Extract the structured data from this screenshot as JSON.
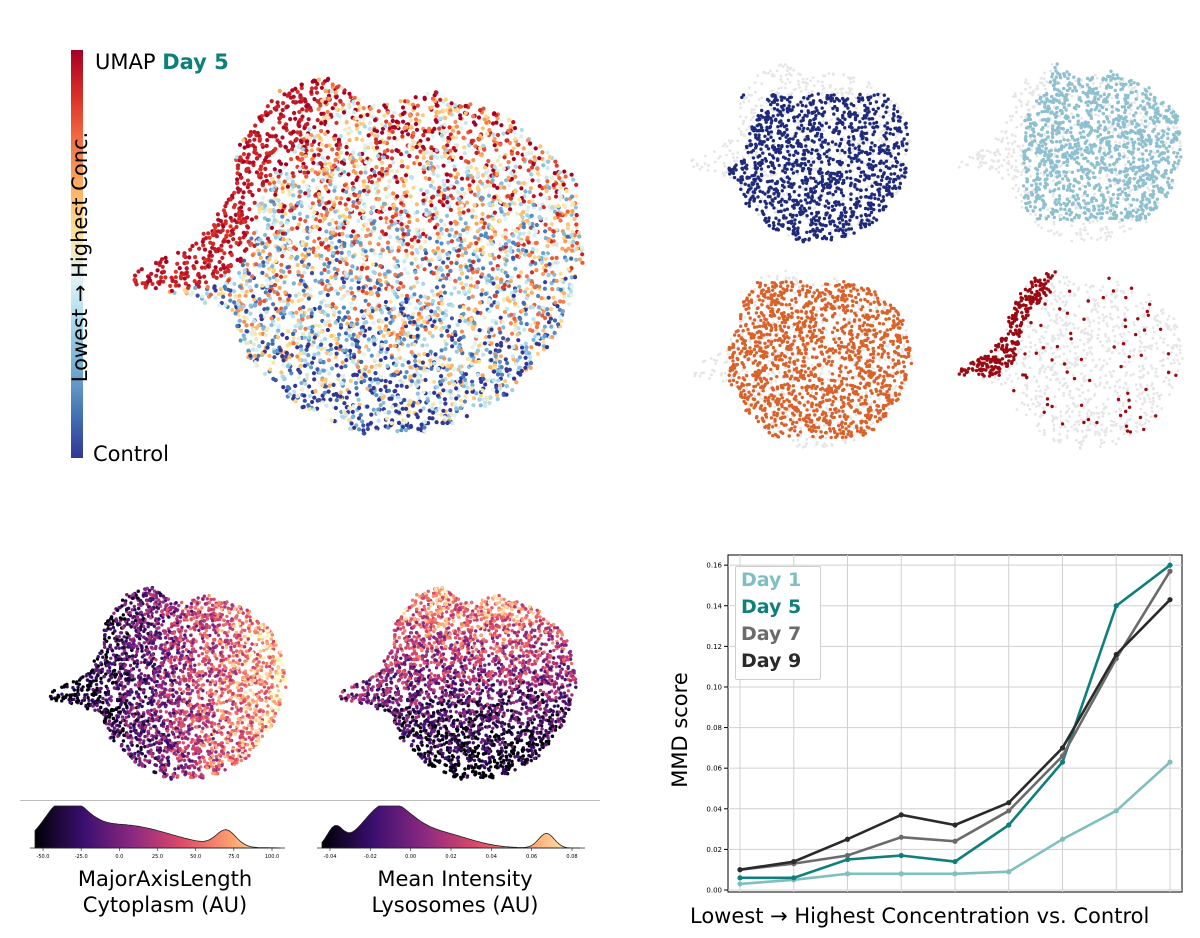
{
  "umap_panel": {
    "title_prefix": "UMAP",
    "title_day": "Day 5",
    "colorbar_low_label": "Control",
    "colorbar_axis_label": "Lowest → Highest Conc.",
    "colorbar_colors": [
      "#313695",
      "#4575b4",
      "#74add1",
      "#abd9e9",
      "#e0f3f8",
      "#fee090",
      "#fdae61",
      "#f46d43",
      "#d73027",
      "#a50026"
    ]
  },
  "concentration_panels": {
    "colors": [
      "#1f2a7a",
      "#8fc0cf",
      "#d9622b",
      "#9b0a12"
    ],
    "background_color": "#e6e6e6"
  },
  "feature_panels": {
    "panels": [
      {
        "caption_line1": "MajorAxisLength",
        "caption_line2": "Cytoplasm (AU)",
        "ticks": [
          "-50.0",
          "-25.0",
          "0.0",
          "25.0",
          "50.0",
          "75.0",
          "100.0"
        ]
      },
      {
        "caption_line1": "Mean Intensity",
        "caption_line2": "Lysosomes (AU)",
        "ticks": [
          "-0.04",
          "-0.02",
          "0.00",
          "0.02",
          "0.04",
          "0.06",
          "0.08"
        ]
      }
    ],
    "colormap": [
      "#000004",
      "#3b0f70",
      "#8c2981",
      "#de4968",
      "#fe9f6d",
      "#fcfdbf"
    ]
  },
  "chart_data": {
    "type": "line",
    "xlabel": "Lowest → Highest Concentration vs. Control",
    "ylabel": "MMD score",
    "x": [
      1,
      2,
      3,
      4,
      5,
      6,
      7,
      8,
      9
    ],
    "ylim": [
      0.0,
      0.165
    ],
    "yticks": [
      "0.00",
      "0.02",
      "0.04",
      "0.06",
      "0.08",
      "0.10",
      "0.12",
      "0.14",
      "0.16"
    ],
    "grid": true,
    "legend_position": "top-left",
    "series": [
      {
        "name": "Day 1",
        "color": "#7fbfbf",
        "values": [
          0.003,
          0.005,
          0.008,
          0.008,
          0.008,
          0.009,
          0.025,
          0.039,
          0.063
        ]
      },
      {
        "name": "Day 5",
        "color": "#0f7f7c",
        "values": [
          0.006,
          0.006,
          0.015,
          0.017,
          0.014,
          0.032,
          0.063,
          0.14,
          0.16
        ]
      },
      {
        "name": "Day 7",
        "color": "#6b6b6b",
        "values": [
          0.01,
          0.013,
          0.017,
          0.026,
          0.024,
          0.039,
          0.066,
          0.114,
          0.157
        ]
      },
      {
        "name": "Day 9",
        "color": "#2a2a2a",
        "values": [
          0.01,
          0.014,
          0.025,
          0.037,
          0.032,
          0.043,
          0.07,
          0.116,
          0.143
        ]
      }
    ]
  }
}
